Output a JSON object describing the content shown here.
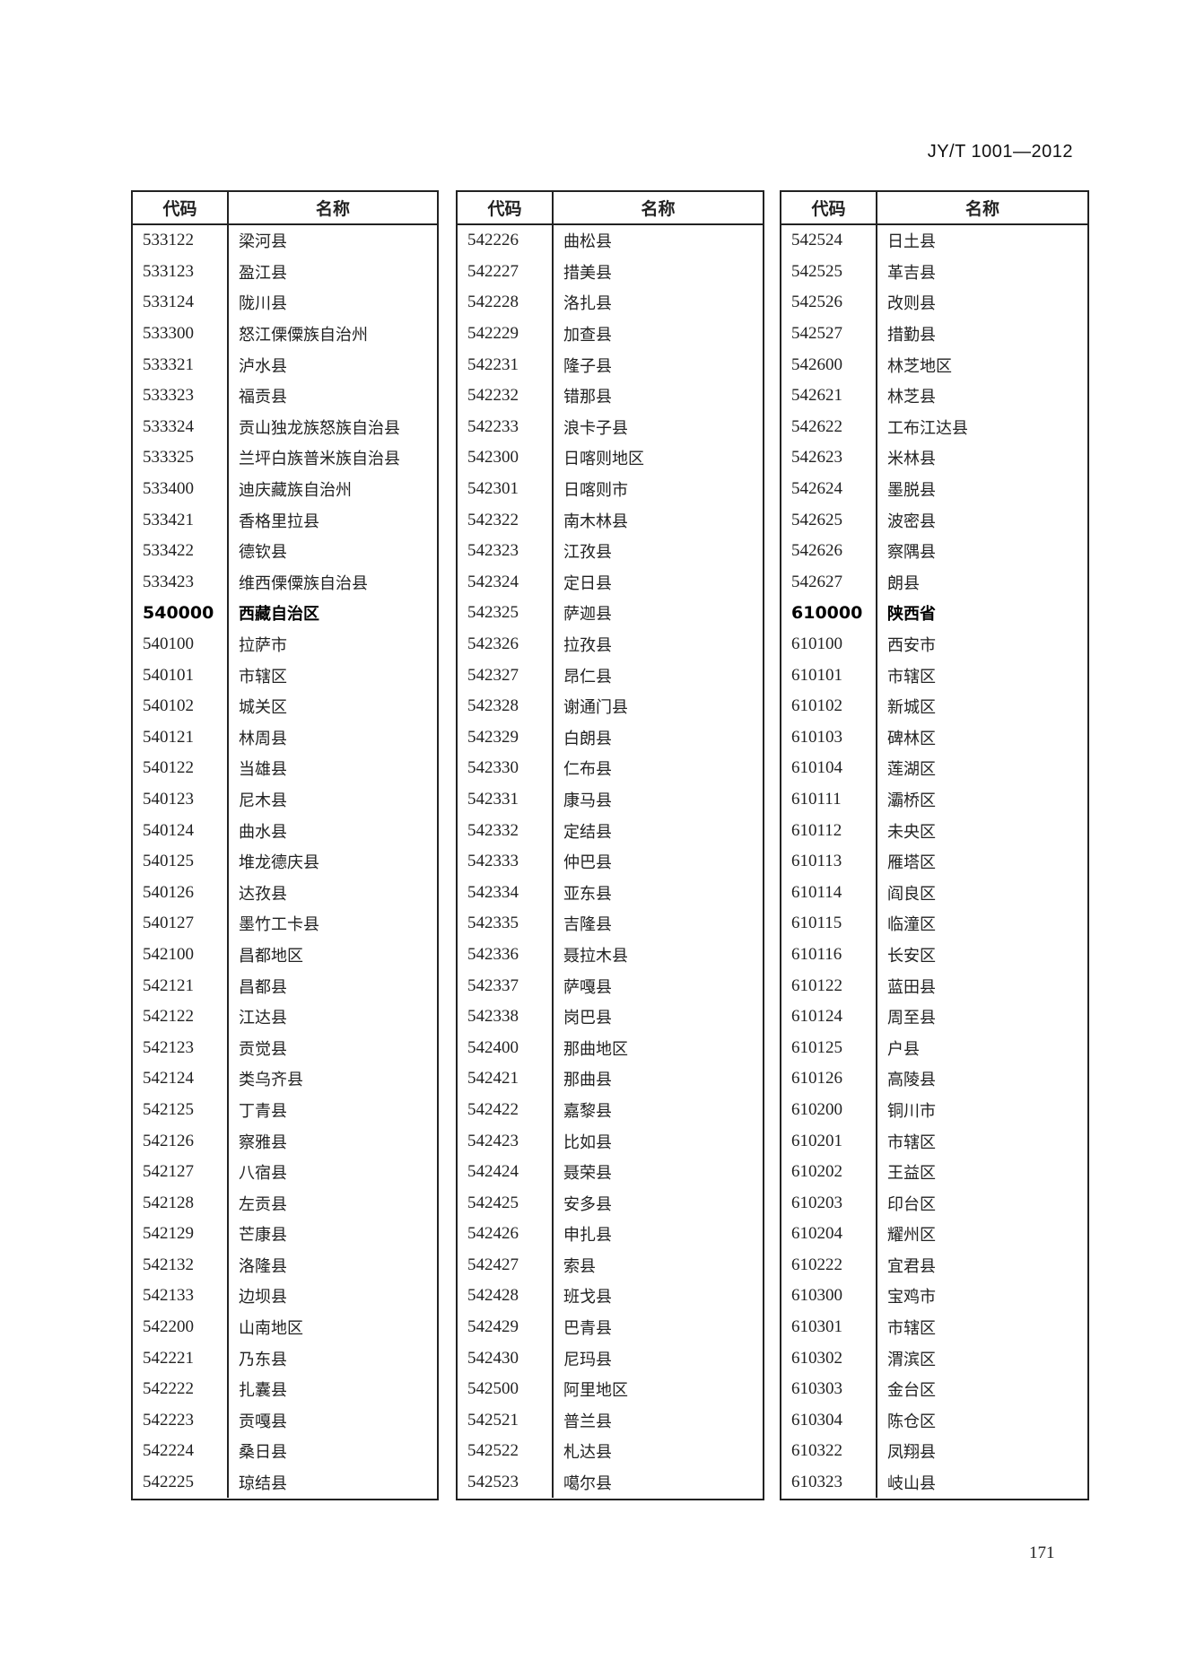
{
  "header": {
    "standard_number": "JY/T 1001—2012"
  },
  "table_headers": {
    "code": "代码",
    "name": "名称"
  },
  "tables": [
    {
      "rows": [
        {
          "code": "533122",
          "name": "梁河县"
        },
        {
          "code": "533123",
          "name": "盈江县"
        },
        {
          "code": "533124",
          "name": "陇川县"
        },
        {
          "code": "533300",
          "name": "怒江傈僳族自治州"
        },
        {
          "code": "533321",
          "name": "泸水县"
        },
        {
          "code": "533323",
          "name": "福贡县"
        },
        {
          "code": "533324",
          "name": "贡山独龙族怒族自治县"
        },
        {
          "code": "533325",
          "name": "兰坪白族普米族自治县"
        },
        {
          "code": "533400",
          "name": "迪庆藏族自治州"
        },
        {
          "code": "533421",
          "name": "香格里拉县"
        },
        {
          "code": "533422",
          "name": "德钦县"
        },
        {
          "code": "533423",
          "name": "维西傈僳族自治县"
        },
        {
          "code": "540000",
          "name": "西藏自治区",
          "bold": true
        },
        {
          "code": "540100",
          "name": "拉萨市"
        },
        {
          "code": "540101",
          "name": "市辖区"
        },
        {
          "code": "540102",
          "name": "城关区"
        },
        {
          "code": "540121",
          "name": "林周县"
        },
        {
          "code": "540122",
          "name": "当雄县"
        },
        {
          "code": "540123",
          "name": "尼木县"
        },
        {
          "code": "540124",
          "name": "曲水县"
        },
        {
          "code": "540125",
          "name": "堆龙德庆县"
        },
        {
          "code": "540126",
          "name": "达孜县"
        },
        {
          "code": "540127",
          "name": "墨竹工卡县"
        },
        {
          "code": "542100",
          "name": "昌都地区"
        },
        {
          "code": "542121",
          "name": "昌都县"
        },
        {
          "code": "542122",
          "name": "江达县"
        },
        {
          "code": "542123",
          "name": "贡觉县"
        },
        {
          "code": "542124",
          "name": "类乌齐县"
        },
        {
          "code": "542125",
          "name": "丁青县"
        },
        {
          "code": "542126",
          "name": "察雅县"
        },
        {
          "code": "542127",
          "name": "八宿县"
        },
        {
          "code": "542128",
          "name": "左贡县"
        },
        {
          "code": "542129",
          "name": "芒康县"
        },
        {
          "code": "542132",
          "name": "洛隆县"
        },
        {
          "code": "542133",
          "name": "边坝县"
        },
        {
          "code": "542200",
          "name": "山南地区"
        },
        {
          "code": "542221",
          "name": "乃东县"
        },
        {
          "code": "542222",
          "name": "扎囊县"
        },
        {
          "code": "542223",
          "name": "贡嘎县"
        },
        {
          "code": "542224",
          "name": "桑日县"
        },
        {
          "code": "542225",
          "name": "琼结县"
        }
      ]
    },
    {
      "rows": [
        {
          "code": "542226",
          "name": "曲松县"
        },
        {
          "code": "542227",
          "name": "措美县"
        },
        {
          "code": "542228",
          "name": "洛扎县"
        },
        {
          "code": "542229",
          "name": "加查县"
        },
        {
          "code": "542231",
          "name": "隆子县"
        },
        {
          "code": "542232",
          "name": "错那县"
        },
        {
          "code": "542233",
          "name": "浪卡子县"
        },
        {
          "code": "542300",
          "name": "日喀则地区"
        },
        {
          "code": "542301",
          "name": "日喀则市"
        },
        {
          "code": "542322",
          "name": "南木林县"
        },
        {
          "code": "542323",
          "name": "江孜县"
        },
        {
          "code": "542324",
          "name": "定日县"
        },
        {
          "code": "542325",
          "name": "萨迦县"
        },
        {
          "code": "542326",
          "name": "拉孜县"
        },
        {
          "code": "542327",
          "name": "昂仁县"
        },
        {
          "code": "542328",
          "name": "谢通门县"
        },
        {
          "code": "542329",
          "name": "白朗县"
        },
        {
          "code": "542330",
          "name": "仁布县"
        },
        {
          "code": "542331",
          "name": "康马县"
        },
        {
          "code": "542332",
          "name": "定结县"
        },
        {
          "code": "542333",
          "name": "仲巴县"
        },
        {
          "code": "542334",
          "name": "亚东县"
        },
        {
          "code": "542335",
          "name": "吉隆县"
        },
        {
          "code": "542336",
          "name": "聂拉木县"
        },
        {
          "code": "542337",
          "name": "萨嘎县"
        },
        {
          "code": "542338",
          "name": "岗巴县"
        },
        {
          "code": "542400",
          "name": "那曲地区"
        },
        {
          "code": "542421",
          "name": "那曲县"
        },
        {
          "code": "542422",
          "name": "嘉黎县"
        },
        {
          "code": "542423",
          "name": "比如县"
        },
        {
          "code": "542424",
          "name": "聂荣县"
        },
        {
          "code": "542425",
          "name": "安多县"
        },
        {
          "code": "542426",
          "name": "申扎县"
        },
        {
          "code": "542427",
          "name": "索县"
        },
        {
          "code": "542428",
          "name": "班戈县"
        },
        {
          "code": "542429",
          "name": "巴青县"
        },
        {
          "code": "542430",
          "name": "尼玛县"
        },
        {
          "code": "542500",
          "name": "阿里地区"
        },
        {
          "code": "542521",
          "name": "普兰县"
        },
        {
          "code": "542522",
          "name": "札达县"
        },
        {
          "code": "542523",
          "name": "噶尔县"
        }
      ]
    },
    {
      "rows": [
        {
          "code": "542524",
          "name": "日土县"
        },
        {
          "code": "542525",
          "name": "革吉县"
        },
        {
          "code": "542526",
          "name": "改则县"
        },
        {
          "code": "542527",
          "name": "措勤县"
        },
        {
          "code": "542600",
          "name": "林芝地区"
        },
        {
          "code": "542621",
          "name": "林芝县"
        },
        {
          "code": "542622",
          "name": "工布江达县"
        },
        {
          "code": "542623",
          "name": "米林县"
        },
        {
          "code": "542624",
          "name": "墨脱县"
        },
        {
          "code": "542625",
          "name": "波密县"
        },
        {
          "code": "542626",
          "name": "察隅县"
        },
        {
          "code": "542627",
          "name": "朗县"
        },
        {
          "code": "610000",
          "name": "陕西省",
          "bold": true
        },
        {
          "code": "610100",
          "name": "西安市"
        },
        {
          "code": "610101",
          "name": "市辖区"
        },
        {
          "code": "610102",
          "name": "新城区"
        },
        {
          "code": "610103",
          "name": "碑林区"
        },
        {
          "code": "610104",
          "name": "莲湖区"
        },
        {
          "code": "610111",
          "name": "灞桥区"
        },
        {
          "code": "610112",
          "name": "未央区"
        },
        {
          "code": "610113",
          "name": "雁塔区"
        },
        {
          "code": "610114",
          "name": "阎良区"
        },
        {
          "code": "610115",
          "name": "临潼区"
        },
        {
          "code": "610116",
          "name": "长安区"
        },
        {
          "code": "610122",
          "name": "蓝田县"
        },
        {
          "code": "610124",
          "name": "周至县"
        },
        {
          "code": "610125",
          "name": "户县"
        },
        {
          "code": "610126",
          "name": "高陵县"
        },
        {
          "code": "610200",
          "name": "铜川市"
        },
        {
          "code": "610201",
          "name": "市辖区"
        },
        {
          "code": "610202",
          "name": "王益区"
        },
        {
          "code": "610203",
          "name": "印台区"
        },
        {
          "code": "610204",
          "name": "耀州区"
        },
        {
          "code": "610222",
          "name": "宜君县"
        },
        {
          "code": "610300",
          "name": "宝鸡市"
        },
        {
          "code": "610301",
          "name": "市辖区"
        },
        {
          "code": "610302",
          "name": "渭滨区"
        },
        {
          "code": "610303",
          "name": "金台区"
        },
        {
          "code": "610304",
          "name": "陈仓区"
        },
        {
          "code": "610322",
          "name": "凤翔县"
        },
        {
          "code": "610323",
          "name": "岐山县"
        }
      ]
    }
  ],
  "footer": {
    "page_number": "171"
  }
}
